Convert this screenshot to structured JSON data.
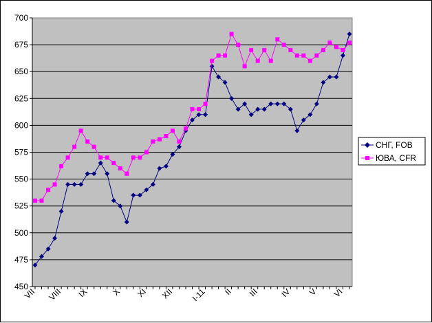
{
  "chart_data": {
    "type": "line",
    "title": "",
    "xlabel": "",
    "ylabel": "",
    "ylim": [
      450,
      700
    ],
    "y_ticks": [
      "450",
      "475",
      "500",
      "525",
      "550",
      "575",
      "600",
      "625",
      "650",
      "675",
      "700"
    ],
    "y_tick_values": [
      450,
      475,
      500,
      525,
      550,
      575,
      600,
      625,
      650,
      675,
      700
    ],
    "x_tick_labels": [
      {
        "label": "VII",
        "index": 0
      },
      {
        "label": "VIII",
        "index": 4
      },
      {
        "label": "IX",
        "index": 8
      },
      {
        "label": "X",
        "index": 13
      },
      {
        "label": "XI",
        "index": 17
      },
      {
        "label": "XII",
        "index": 21
      },
      {
        "label": "I-11",
        "index": 26
      },
      {
        "label": "II",
        "index": 30
      },
      {
        "label": "III",
        "index": 34
      },
      {
        "label": "IV",
        "index": 39
      },
      {
        "label": "V",
        "index": 43
      },
      {
        "label": "VI",
        "index": 47
      }
    ],
    "grid": true,
    "legend_position": "right",
    "plot_background": "#c0c0c0",
    "series": [
      {
        "name": "СНГ, FOB",
        "color": "#000080",
        "marker": "diamond",
        "values": [
          470,
          478,
          485,
          495,
          520,
          545,
          545,
          545,
          555,
          555,
          565,
          555,
          530,
          525,
          510,
          535,
          535,
          540,
          545,
          560,
          562,
          573,
          580,
          595,
          605,
          610,
          610,
          655,
          645,
          640,
          625,
          615,
          620,
          610,
          615,
          615,
          620,
          620,
          620,
          615,
          595,
          605,
          610,
          620,
          640,
          645,
          645,
          665,
          685
        ]
      },
      {
        "name": "ЮВА, CFR",
        "color": "#ff00ff",
        "marker": "square",
        "values": [
          530,
          530,
          540,
          545,
          562,
          570,
          580,
          595,
          585,
          580,
          570,
          570,
          565,
          560,
          555,
          570,
          570,
          575,
          585,
          587,
          590,
          595,
          585,
          597,
          615,
          615,
          620,
          660,
          665,
          665,
          685,
          675,
          655,
          670,
          660,
          670,
          660,
          680,
          675,
          670,
          665,
          665,
          660,
          665,
          670,
          677,
          673,
          670,
          677
        ]
      }
    ]
  }
}
